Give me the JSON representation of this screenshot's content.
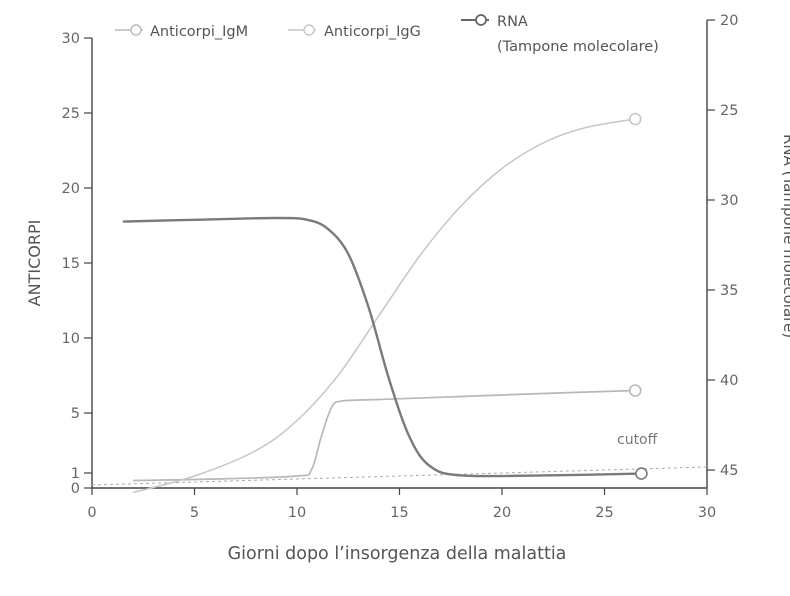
{
  "chart_data": {
    "type": "line",
    "xlabel": "Giorni dopo l’insorgenza della malattia",
    "ylabel_left": "ANTICORPI",
    "ylabel_right": "RNA (Tampone molecolare)",
    "x_range": [
      0,
      30
    ],
    "x_ticks": [
      "0",
      "5",
      "10",
      "15",
      "20",
      "25",
      "30"
    ],
    "y_left_range": [
      0,
      30
    ],
    "y_left_ticks": [
      "0",
      "1",
      "5",
      "10",
      "15",
      "20",
      "25",
      "30"
    ],
    "y_right_range": [
      20,
      46
    ],
    "y_right_reversed": true,
    "y_right_ticks": [
      "20",
      "25",
      "30",
      "35",
      "40",
      "45"
    ],
    "cutoff": {
      "label": "cutoff",
      "y_right": 45
    },
    "legend_position": "top",
    "series": [
      {
        "name": "Anticorpi_IgM",
        "axis": "left",
        "color": "#b8b8b8",
        "x": [
          2,
          6,
          10,
          10.7,
          11.2,
          11.7,
          12.2,
          14,
          18,
          22,
          26.5
        ],
        "y": [
          0.5,
          0.6,
          0.8,
          1.2,
          3.5,
          5.4,
          5.8,
          5.9,
          6.1,
          6.3,
          6.5
        ]
      },
      {
        "name": "Anticorpi_IgG",
        "axis": "left",
        "color": "#c6c6c6",
        "x": [
          2,
          5,
          8,
          10,
          12,
          14,
          16,
          18,
          20,
          22,
          24,
          26.5
        ],
        "y": [
          -0.3,
          0.8,
          2.5,
          4.5,
          7.5,
          11.5,
          15.5,
          18.8,
          21.3,
          23,
          24,
          24.6
        ]
      },
      {
        "name": "RNA",
        "name_line2": "(Tampone molecolare)",
        "axis": "right",
        "color": "#7a7a7a",
        "x": [
          1.5,
          5,
          9,
          10.5,
          11.5,
          12.5,
          13.5,
          14.5,
          15.5,
          16.5,
          18,
          22,
          26.8
        ],
        "y": [
          31.2,
          31.1,
          31.0,
          31.1,
          31.6,
          33.0,
          36.0,
          40.0,
          43.2,
          44.8,
          45.3,
          45.3,
          45.2
        ]
      }
    ]
  }
}
